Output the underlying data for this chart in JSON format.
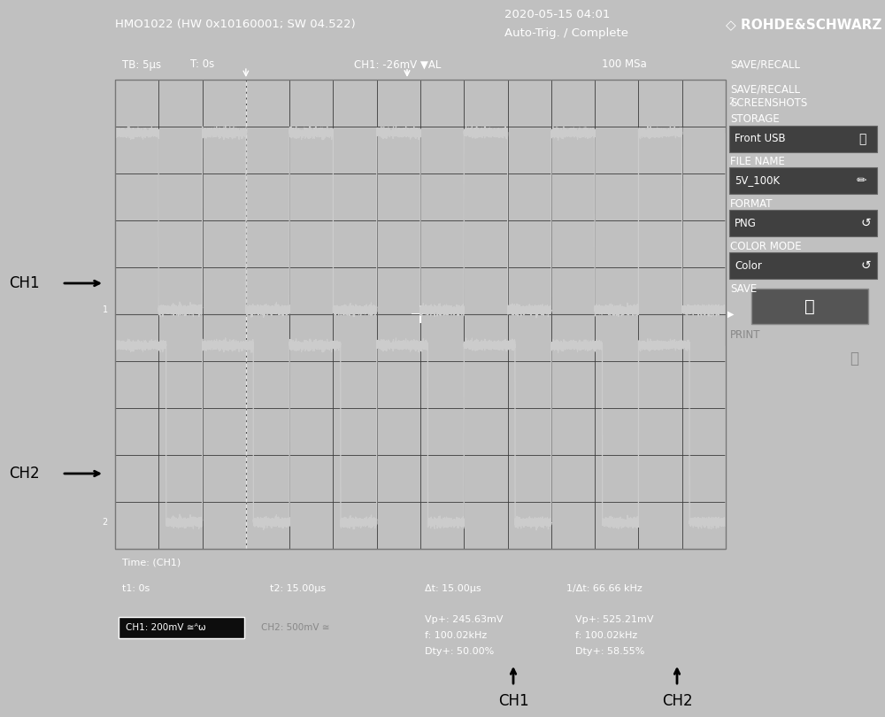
{
  "outer_bg": "#c0c0c0",
  "screen_bg": "#0d0d0d",
  "title_bg": "#1a1a1a",
  "sidebar_bg": "#1a1a1a",
  "meas_bg": "#1a1a1a",
  "sidebar_box_bg": "#3a3a3a",
  "title_bar_text": "HMO1022 (HW 0x10160001; SW 04.522)",
  "date_text": "2020-05-15 04:01",
  "trig_text": "Auto-Trig. / Complete",
  "brand_text": "ROHDE&SCHWARZ",
  "status_text1": "TB: 5μs",
  "status_text2": "T: 0s",
  "status_text3": "CH1: -26mV ▼AL",
  "status_text4": "100 MSa",
  "time_text1": "Time: (CH1)",
  "time_text2": "t1: 0s",
  "time_text3": "t2: 15.00μs",
  "time_text4": "Δt: 15.00μs",
  "time_text5": "1/Δt: 66.66 kHz",
  "ch1_box_text": "CH1: 200mV ≅ᴬω",
  "ch2_text": "CH2: 500mV ≅",
  "ch1_meas1": "Vp+: 245.63mV",
  "ch1_meas2": "f: 100.02kHz",
  "ch1_meas3": "Dty+: 50.00%",
  "ch2_meas1": "Vp+: 525.21mV",
  "ch2_meas2": "f: 100.02kHz",
  "ch2_meas3": "Dty+: 58.55%",
  "grid_color": "#3a3a3a",
  "wave_color": "#cccccc",
  "white": "#ffffff",
  "black": "#000000",
  "duty_cycle_ch1": 0.5,
  "duty_cycle_ch2": 0.585,
  "period_us": 10.0,
  "total_us": 70.0
}
